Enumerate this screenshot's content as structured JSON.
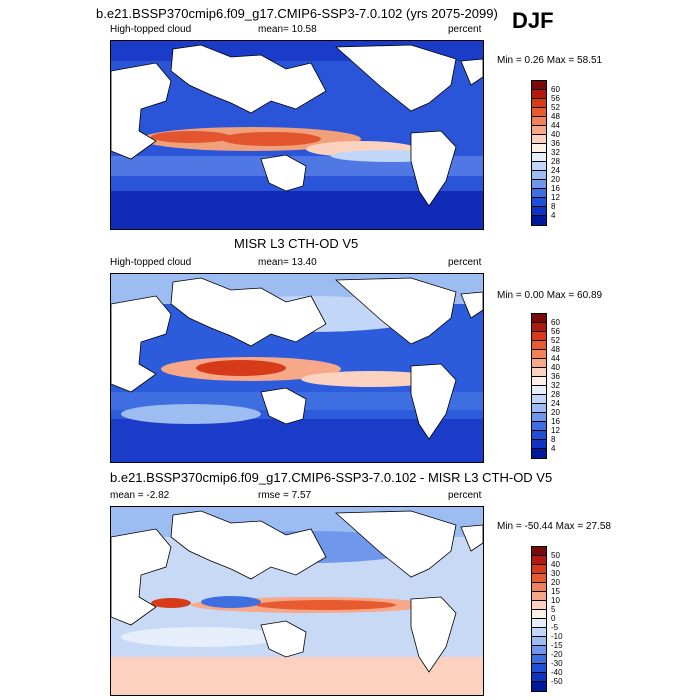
{
  "season": "DJF",
  "panels": [
    {
      "title": "b.e21.BSSP370cmip6.f09_g17.CMIP6-SSP3-7.0.102 (yrs 2075-2099)",
      "left": "High-topped cloud",
      "mid": "mean=  10.58",
      "right": "percent",
      "minmax": "Min =   0.26 Max =  58.51",
      "levels": [
        "60",
        "56",
        "52",
        "48",
        "44",
        "40",
        "36",
        "32",
        "28",
        "24",
        "20",
        "16",
        "12",
        "8",
        "4"
      ],
      "colors": [
        "#7a0a0a",
        "#b01a10",
        "#d63a18",
        "#e85a30",
        "#f2805a",
        "#f7a888",
        "#fbd2bf",
        "#fdf0e6",
        "#e6eefb",
        "#c2d6f7",
        "#9cbcf2",
        "#6f97ec",
        "#3f6ee0",
        "#1f4fd6",
        "#0d35c4",
        "#00189a"
      ]
    },
    {
      "title": "MISR L3 CTH-OD V5",
      "left": "High-topped cloud",
      "mid": "mean=  13.40",
      "right": "percent",
      "minmax": "Min =   0.00 Max =  60.89",
      "levels": [
        "60",
        "56",
        "52",
        "48",
        "44",
        "40",
        "36",
        "32",
        "28",
        "24",
        "20",
        "16",
        "12",
        "8",
        "4"
      ],
      "colors": [
        "#7a0a0a",
        "#b01a10",
        "#d63a18",
        "#e85a30",
        "#f2805a",
        "#f7a888",
        "#fbd2bf",
        "#fdf0e6",
        "#e6eefb",
        "#c2d6f7",
        "#9cbcf2",
        "#6f97ec",
        "#3f6ee0",
        "#1f4fd6",
        "#0d35c4",
        "#00189a"
      ]
    },
    {
      "title": "b.e21.BSSP370cmip6.f09_g17.CMIP6-SSP3-7.0.102 - MISR L3 CTH-OD V5",
      "left": "mean =  -2.82",
      "mid": "rmse =   7.57",
      "right": "percent",
      "minmax": "Min = -50.44 Max =  27.58",
      "levels": [
        "50",
        "40",
        "30",
        "20",
        "15",
        "10",
        "5",
        "0",
        "-5",
        "-10",
        "-15",
        "-20",
        "-30",
        "-40",
        "-50"
      ],
      "colors": [
        "#7a0a0a",
        "#b01a10",
        "#d63a18",
        "#e85a30",
        "#f2805a",
        "#f7a888",
        "#fbd2bf",
        "#fdf0e6",
        "#e6eefb",
        "#c2d6f7",
        "#9cbcf2",
        "#6f97ec",
        "#3f6ee0",
        "#1f4fd6",
        "#0d35c4",
        "#00189a"
      ]
    }
  ],
  "chart_data": [
    {
      "type": "heatmap",
      "title": "b.e21.BSSP370cmip6.f09_g17.CMIP6-SSP3-7.0.102 (yrs 2075-2099)",
      "variable": "High-topped cloud",
      "units": "percent",
      "mean": 10.58,
      "min": 0.26,
      "max": 58.51,
      "contour_levels": [
        4,
        8,
        12,
        16,
        20,
        24,
        28,
        32,
        36,
        40,
        44,
        48,
        52,
        56,
        60
      ]
    },
    {
      "type": "heatmap",
      "title": "MISR L3 CTH-OD V5",
      "variable": "High-topped cloud",
      "units": "percent",
      "mean": 13.4,
      "min": 0.0,
      "max": 60.89,
      "contour_levels": [
        4,
        8,
        12,
        16,
        20,
        24,
        28,
        32,
        36,
        40,
        44,
        48,
        52,
        56,
        60
      ]
    },
    {
      "type": "heatmap",
      "title": "b.e21.BSSP370cmip6.f09_g17.CMIP6-SSP3-7.0.102 - MISR L3 CTH-OD V5",
      "units": "percent",
      "mean": -2.82,
      "rmse": 7.57,
      "min": -50.44,
      "max": 27.58,
      "contour_levels": [
        -50,
        -40,
        -30,
        -20,
        -15,
        -10,
        -5,
        0,
        5,
        10,
        15,
        20,
        30,
        40,
        50
      ]
    }
  ]
}
